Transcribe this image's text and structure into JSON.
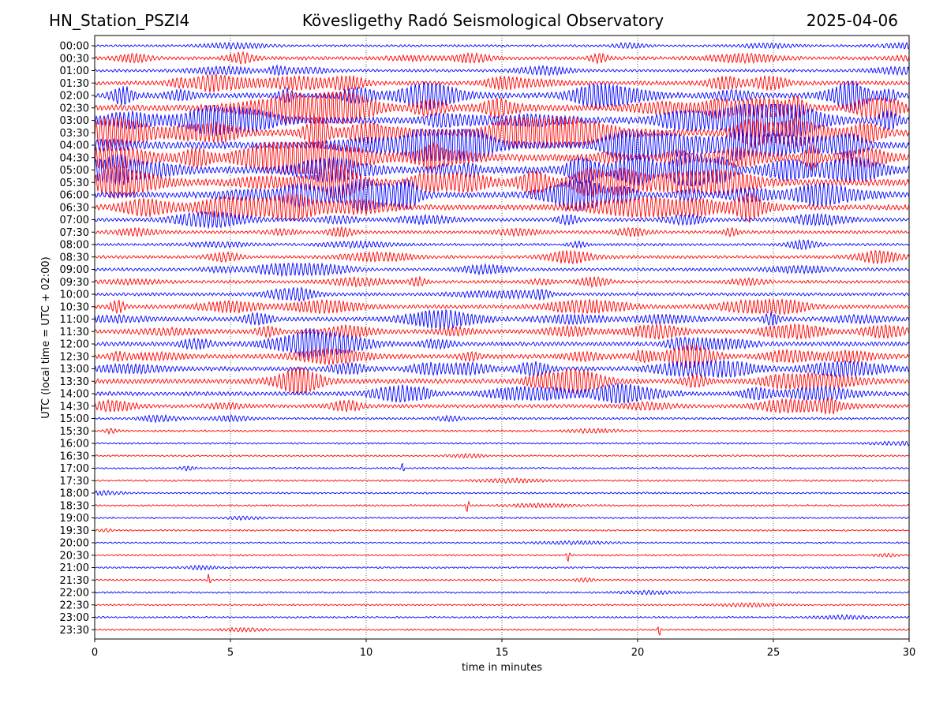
{
  "header": {
    "station": "HN_Station_PSZI4",
    "observatory": "Kövesligethy Radó Seismological Observatory",
    "date": "2025-04-06"
  },
  "chart_data": {
    "type": "line",
    "title": "Kövesligethy Radó Seismological Observatory",
    "xlabel": "time in minutes",
    "ylabel": "UTC (local time = UTC + 02:00)",
    "xlim": [
      0,
      30
    ],
    "x_ticks": [
      "0",
      "5",
      "10",
      "15",
      "20",
      "25",
      "30"
    ],
    "x_tick_values": [
      0,
      5,
      10,
      15,
      20,
      25,
      30
    ],
    "grid": "vertical dotted at x ticks",
    "trace_colors": [
      "#0000ff",
      "#ff0000"
    ],
    "rows": [
      "00:00",
      "00:30",
      "01:00",
      "01:30",
      "02:00",
      "02:30",
      "03:00",
      "03:30",
      "04:00",
      "04:30",
      "05:00",
      "05:30",
      "06:00",
      "06:30",
      "07:00",
      "07:30",
      "08:00",
      "08:30",
      "09:00",
      "09:30",
      "10:00",
      "10:30",
      "11:00",
      "11:30",
      "12:00",
      "12:30",
      "13:00",
      "13:30",
      "14:00",
      "14:30",
      "15:00",
      "15:30",
      "16:00",
      "16:30",
      "17:00",
      "17:30",
      "18:00",
      "18:30",
      "19:00",
      "19:30",
      "20:00",
      "20:30",
      "21:00",
      "21:30",
      "22:00",
      "22:30",
      "23:00",
      "23:30"
    ],
    "trace_activity": [
      0.15,
      0.35,
      0.25,
      0.5,
      0.7,
      0.85,
      0.95,
      1.0,
      1.0,
      1.0,
      1.0,
      0.95,
      0.8,
      0.7,
      0.4,
      0.3,
      0.2,
      0.3,
      0.3,
      0.3,
      0.3,
      0.45,
      0.5,
      0.5,
      0.5,
      0.55,
      0.55,
      0.6,
      0.5,
      0.4,
      0.15,
      0.1,
      0.05,
      0.05,
      0.06,
      0.06,
      0.06,
      0.05,
      0.05,
      0.05,
      0.05,
      0.05,
      0.05,
      0.05,
      0.06,
      0.05,
      0.05,
      0.05
    ]
  }
}
